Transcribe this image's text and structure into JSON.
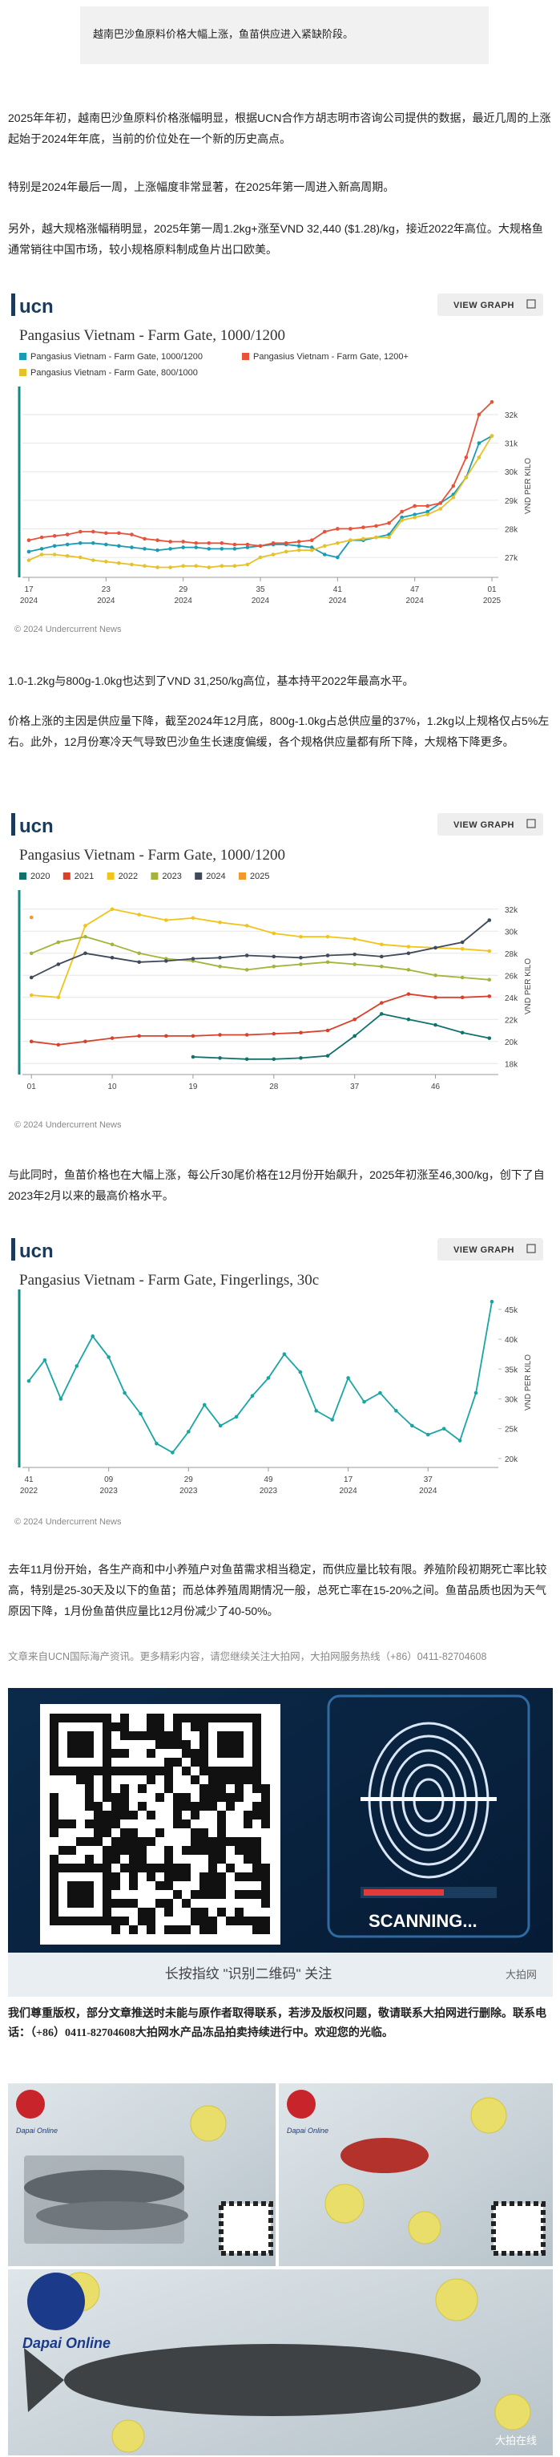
{
  "article": {
    "quote": "越南巴沙鱼原料价格大幅上涨，鱼苗供应进入紧缺阶段。",
    "paragraphs": [
      "2025年年初，越南巴沙鱼原料价格涨幅明显，根据UCN合作方胡志明市咨询公司提供的数据，最近几周的上涨起始于2024年年底，当前的价位处在一个新的历史高点。",
      "特别是2024年最后一周，上涨幅度非常显著，在2025年第一周进入新高周期。",
      "另外，越大规格涨幅稍明显，2025年第一周1.2kg+涨至VND 32,440 ($1.28)/kg，接近2022年高位。大规格鱼通常销往中国市场，较小规格原料制成鱼片出口欧美。",
      "1.0-1.2kg与800g-1.0kg也达到了VND 31,250/kg高位，基本持平2022年最高水平。",
      "价格上涨的主因是供应量下降，截至2024年12月底，800g-1.0kg占总供应量的37%，1.2kg以上规格仅占5%左右。此外，12月份寒冷天气导致巴沙鱼生长速度偏缓，各个规格供应量都有所下降，大规格下降更多。",
      "与此同时，鱼苗价格也在大幅上涨，每公斤30尾价格在12月份开始飙升，2025年初涨至46,300/kg，创下了自2023年2月以来的最高价格水平。",
      "去年11月份开始，各生产商和中小养殖户对鱼苗需求相当稳定，而供应量比较有限。养殖阶段初期死亡率比较高，特别是25-30天及以下的鱼苗；而总体养殖周期情况一般，总死亡率在15-20%之间。鱼苗品质也因为天气原因下降，1月份鱼苗供应量比12月份减少了40-50%。"
    ],
    "source": "文章来自UCN国际海产资讯。更多精彩内容，请您继续关注大拍网，大拍网服务热线（+86）0411-82704608",
    "qr": {
      "scanning": "SCANNING...",
      "caption": "长按指纹 \"识别二维码\" 关注",
      "watermark": "大拍网"
    },
    "notice": "我们尊重版权，部分文章推送时未能与原作者取得联系，若涉及版权问题，敬请联系大拍网进行删除。联系电话：（+86）0411-82704608大拍网水产品冻品拍卖持续进行中。欢迎您的光临。",
    "photos": {
      "logo": "Dapai Online",
      "watermark": "大拍在线"
    }
  },
  "chart_data": [
    {
      "type": "line",
      "brand": "ucn",
      "button": "VIEW GRAPH",
      "title": "Pangasius Vietnam - Farm Gate, 1000/1200",
      "y_label": "VND PER KILO",
      "footer": "© 2024 Undercurrent News",
      "grid": true,
      "categories": [
        "17",
        null,
        null,
        null,
        null,
        null,
        "23",
        null,
        null,
        null,
        null,
        null,
        "29",
        null,
        null,
        null,
        null,
        null,
        "35",
        null,
        null,
        null,
        null,
        null,
        "41",
        null,
        null,
        null,
        null,
        null,
        "47",
        null,
        null,
        null,
        null,
        null,
        "01"
      ],
      "category_years": [
        "2024",
        null,
        null,
        null,
        null,
        null,
        "2024",
        null,
        null,
        null,
        null,
        null,
        "2024",
        null,
        null,
        null,
        null,
        null,
        "2024",
        null,
        null,
        null,
        null,
        null,
        "2024",
        null,
        null,
        null,
        null,
        null,
        "2024",
        null,
        null,
        null,
        null,
        null,
        "2025"
      ],
      "ylim": [
        26300,
        32700
      ],
      "yticks": [
        {
          "value": 27000,
          "label": "27k"
        },
        {
          "value": 28000,
          "label": "28k"
        },
        {
          "value": 29000,
          "label": "29k"
        },
        {
          "value": 30000,
          "label": "30k"
        },
        {
          "value": 31000,
          "label": "31k"
        },
        {
          "value": 32000,
          "label": "32k"
        }
      ],
      "series": [
        {
          "name": "Pangasius Vietnam - Farm Gate, 1000/1200",
          "color": "#1a9bb5",
          "values": [
            27200,
            27300,
            27400,
            27450,
            27500,
            27500,
            27450,
            27400,
            27350,
            27300,
            27250,
            27300,
            27350,
            27350,
            27300,
            27300,
            27300,
            27350,
            27400,
            27450,
            27450,
            27400,
            27350,
            27100,
            27000,
            27600,
            27600,
            27700,
            27800,
            28400,
            28500,
            28600,
            28900,
            29200,
            29800,
            31000,
            31250
          ]
        },
        {
          "name": "Pangasius Vietnam - Farm Gate, 1200+",
          "color": "#e8523a",
          "values": [
            27600,
            27700,
            27750,
            27800,
            27900,
            27900,
            27850,
            27850,
            27800,
            27650,
            27600,
            27550,
            27550,
            27500,
            27500,
            27500,
            27450,
            27450,
            27400,
            27500,
            27500,
            27550,
            27600,
            27900,
            28000,
            28000,
            28050,
            28100,
            28200,
            28600,
            28800,
            28800,
            28900,
            29500,
            30500,
            32000,
            32440
          ]
        },
        {
          "name": "Pangasius Vietnam - Farm Gate, 800/1000",
          "color": "#e6c229",
          "values": [
            26900,
            27100,
            27100,
            27050,
            27000,
            26900,
            26850,
            26800,
            26750,
            26700,
            26650,
            26650,
            26700,
            26700,
            26650,
            26700,
            26700,
            26750,
            27000,
            27100,
            27200,
            27250,
            27250,
            27400,
            27500,
            27600,
            27650,
            27700,
            27700,
            28300,
            28400,
            28500,
            28700,
            29100,
            29800,
            30500,
            31250
          ]
        }
      ]
    },
    {
      "type": "line",
      "brand": "ucn",
      "button": "VIEW GRAPH",
      "title": "Pangasius Vietnam - Farm Gate, 1000/1200",
      "y_label": "VND PER KILO",
      "footer": "© 2024 Undercurrent News",
      "grid": true,
      "x": [
        1,
        4,
        7,
        10,
        13,
        16,
        19,
        22,
        25,
        28,
        31,
        34,
        37,
        40,
        43,
        46,
        49,
        52
      ],
      "xlim": [
        0,
        53
      ],
      "xticks": [
        {
          "value": 1,
          "label": "01"
        },
        10,
        19,
        28,
        37,
        46
      ],
      "ylim": [
        17000,
        33000
      ],
      "yticks": [
        {
          "value": 18000,
          "label": "18k"
        },
        {
          "value": 20000,
          "label": "20k"
        },
        {
          "value": 22000,
          "label": "22k"
        },
        {
          "value": 24000,
          "label": "24k"
        },
        {
          "value": 26000,
          "label": "26k"
        },
        {
          "value": 28000,
          "label": "28k"
        },
        {
          "value": 30000,
          "label": "30k"
        },
        {
          "value": 32000,
          "label": "32k"
        }
      ],
      "series": [
        {
          "name": "2020",
          "color": "#11726b",
          "values": [
            null,
            null,
            null,
            null,
            null,
            null,
            18600,
            18500,
            18400,
            18400,
            18500,
            18700,
            20500,
            22500,
            22000,
            21500,
            20800,
            20300
          ]
        },
        {
          "name": "2021",
          "color": "#d9412b",
          "values": [
            20000,
            19700,
            20000,
            20300,
            20500,
            20500,
            20500,
            20600,
            20600,
            20700,
            20800,
            21000,
            22000,
            23500,
            24300,
            24000,
            24000,
            24100
          ]
        },
        {
          "name": "2022",
          "color": "#f0c419",
          "values": [
            24200,
            24000,
            30500,
            32000,
            31500,
            31000,
            31200,
            30800,
            30500,
            29800,
            29500,
            29500,
            29300,
            28800,
            28600,
            28500,
            28400,
            28200
          ]
        },
        {
          "name": "2023",
          "color": "#a5b33a",
          "values": [
            28000,
            29000,
            29500,
            28800,
            28000,
            27500,
            27300,
            26800,
            26500,
            26800,
            27000,
            27200,
            27000,
            26800,
            26500,
            26000,
            25800,
            25600
          ]
        },
        {
          "name": "2024",
          "color": "#3e4a5a",
          "values": [
            25800,
            27000,
            28000,
            27600,
            27200,
            27300,
            27500,
            27600,
            27800,
            27700,
            27600,
            27800,
            27900,
            27700,
            28000,
            28500,
            29000,
            31000
          ]
        },
        {
          "name": "2025",
          "color": "#f09a2c",
          "values": [
            31250,
            null,
            null,
            null,
            null,
            null,
            null,
            null,
            null,
            null,
            null,
            null,
            null,
            null,
            null,
            null,
            null,
            null
          ]
        }
      ]
    },
    {
      "type": "line",
      "brand": "ucn",
      "button": "VIEW GRAPH",
      "title": "Pangasius Vietnam - Farm Gate, Fingerlings, 30c",
      "y_label": "VND PER KILO",
      "footer": "© 2024 Undercurrent News",
      "grid": false,
      "categories": [
        "41",
        null,
        null,
        null,
        null,
        "09",
        null,
        null,
        null,
        null,
        "29",
        null,
        null,
        null,
        null,
        "49",
        null,
        null,
        null,
        null,
        "17",
        null,
        null,
        null,
        null,
        "37",
        null,
        null,
        null,
        null
      ],
      "category_years": [
        "2022",
        null,
        null,
        null,
        null,
        "2023",
        null,
        null,
        null,
        null,
        "2023",
        null,
        null,
        null,
        null,
        "2023",
        null,
        null,
        null,
        null,
        "2024",
        null,
        null,
        null,
        null,
        "2024",
        null,
        null,
        null,
        null
      ],
      "ylim": [
        18500,
        47000
      ],
      "yticks": [
        {
          "value": 20000,
          "label": "20k"
        },
        {
          "value": 25000,
          "label": "25k"
        },
        {
          "value": 30000,
          "label": "30k"
        },
        {
          "value": 35000,
          "label": "35k"
        },
        {
          "value": 40000,
          "label": "40k"
        },
        {
          "value": 45000,
          "label": "45k"
        }
      ],
      "series": [
        {
          "color": "#1aa5a5",
          "values": [
            33000,
            36500,
            30000,
            35500,
            40500,
            37000,
            31000,
            27500,
            22500,
            21000,
            24500,
            29000,
            25500,
            27000,
            30500,
            33500,
            37500,
            34500,
            28000,
            26500,
            33500,
            29500,
            31000,
            28000,
            25500,
            24000,
            25000,
            23000,
            31000,
            46300
          ]
        }
      ]
    }
  ]
}
